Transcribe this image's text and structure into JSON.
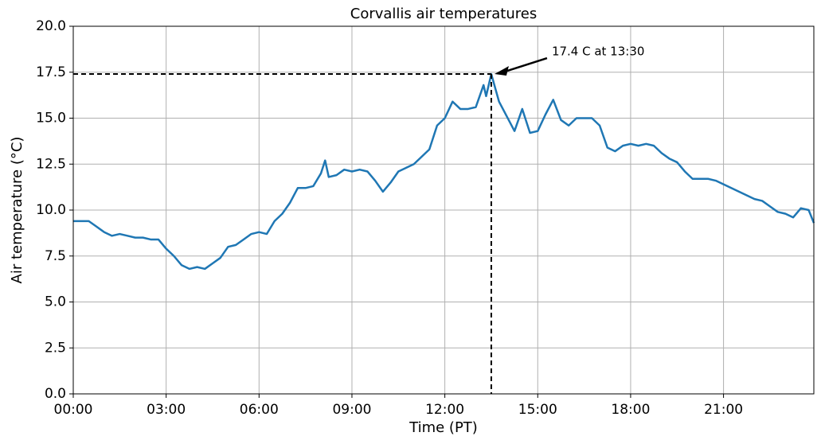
{
  "chart_data": {
    "type": "line",
    "title": "Corvallis air temperatures",
    "x_label": "Time (PT)",
    "y_label": "Air temperature (°C)",
    "x": [
      "00:00",
      "00:15",
      "00:30",
      "00:45",
      "01:00",
      "01:15",
      "01:30",
      "01:45",
      "02:00",
      "02:15",
      "02:30",
      "02:45",
      "03:00",
      "03:15",
      "03:30",
      "03:45",
      "04:00",
      "04:15",
      "04:30",
      "04:45",
      "05:00",
      "05:15",
      "05:30",
      "05:45",
      "06:00",
      "06:15",
      "06:30",
      "06:45",
      "07:00",
      "07:15",
      "07:30",
      "07:45",
      "08:00",
      "08:08",
      "08:15",
      "08:30",
      "08:45",
      "09:00",
      "09:15",
      "09:30",
      "09:45",
      "10:00",
      "10:15",
      "10:30",
      "10:45",
      "11:00",
      "11:15",
      "11:30",
      "11:45",
      "12:00",
      "12:15",
      "12:30",
      "12:45",
      "13:00",
      "13:15",
      "13:20",
      "13:30",
      "13:45",
      "14:00",
      "14:15",
      "14:30",
      "14:45",
      "15:00",
      "15:15",
      "15:30",
      "15:45",
      "16:00",
      "16:15",
      "16:30",
      "16:45",
      "17:00",
      "17:15",
      "17:30",
      "17:45",
      "18:00",
      "18:15",
      "18:30",
      "18:45",
      "19:00",
      "19:15",
      "19:30",
      "19:45",
      "20:00",
      "20:15",
      "20:30",
      "20:45",
      "21:00",
      "21:15",
      "21:30",
      "21:45",
      "22:00",
      "22:15",
      "22:30",
      "22:45",
      "23:00",
      "23:15",
      "23:30",
      "23:45",
      "23:55"
    ],
    "series": [
      {
        "color": "#1f77b4",
        "values": [
          9.4,
          9.4,
          9.4,
          9.1,
          8.8,
          8.6,
          8.7,
          8.6,
          8.5,
          8.5,
          8.4,
          8.4,
          7.9,
          7.5,
          7.0,
          6.8,
          6.9,
          6.8,
          7.1,
          7.4,
          8.0,
          8.1,
          8.4,
          8.7,
          8.8,
          8.7,
          9.4,
          9.8,
          10.4,
          11.2,
          11.2,
          11.3,
          12.0,
          12.7,
          11.8,
          11.9,
          12.2,
          12.1,
          12.2,
          12.1,
          11.6,
          11.0,
          11.5,
          12.1,
          12.3,
          12.5,
          12.9,
          13.3,
          14.6,
          15.0,
          15.9,
          15.5,
          15.5,
          15.6,
          16.8,
          16.2,
          17.4,
          15.9,
          15.1,
          14.3,
          15.5,
          14.2,
          14.3,
          15.2,
          16.0,
          14.9,
          14.6,
          15.0,
          15.0,
          15.0,
          14.6,
          13.4,
          13.2,
          13.5,
          13.6,
          13.5,
          13.6,
          13.5,
          13.1,
          12.8,
          12.6,
          12.1,
          11.7,
          11.7,
          11.7,
          11.6,
          11.4,
          11.2,
          11.0,
          10.8,
          10.6,
          10.5,
          10.2,
          9.9,
          9.8,
          9.6,
          10.1,
          10.0,
          9.3
        ]
      }
    ],
    "xlim": [
      "00:00",
      "23:55"
    ],
    "xticks": [
      "00:00",
      "03:00",
      "06:00",
      "09:00",
      "12:00",
      "15:00",
      "18:00",
      "21:00"
    ],
    "ylim": [
      0,
      20
    ],
    "yticks": [
      {
        "value": 0,
        "label": "0.0"
      },
      2.5,
      {
        "value": 5,
        "label": "5.0"
      },
      7.5,
      {
        "value": 10,
        "label": "10.0"
      },
      12.5,
      {
        "value": 15,
        "label": "15.0"
      },
      17.5,
      {
        "value": 20,
        "label": "20.0"
      }
    ],
    "grid": true,
    "annotation": {
      "text": "17.4 C at 13:30",
      "x": "13:30",
      "y": 17.4
    }
  }
}
